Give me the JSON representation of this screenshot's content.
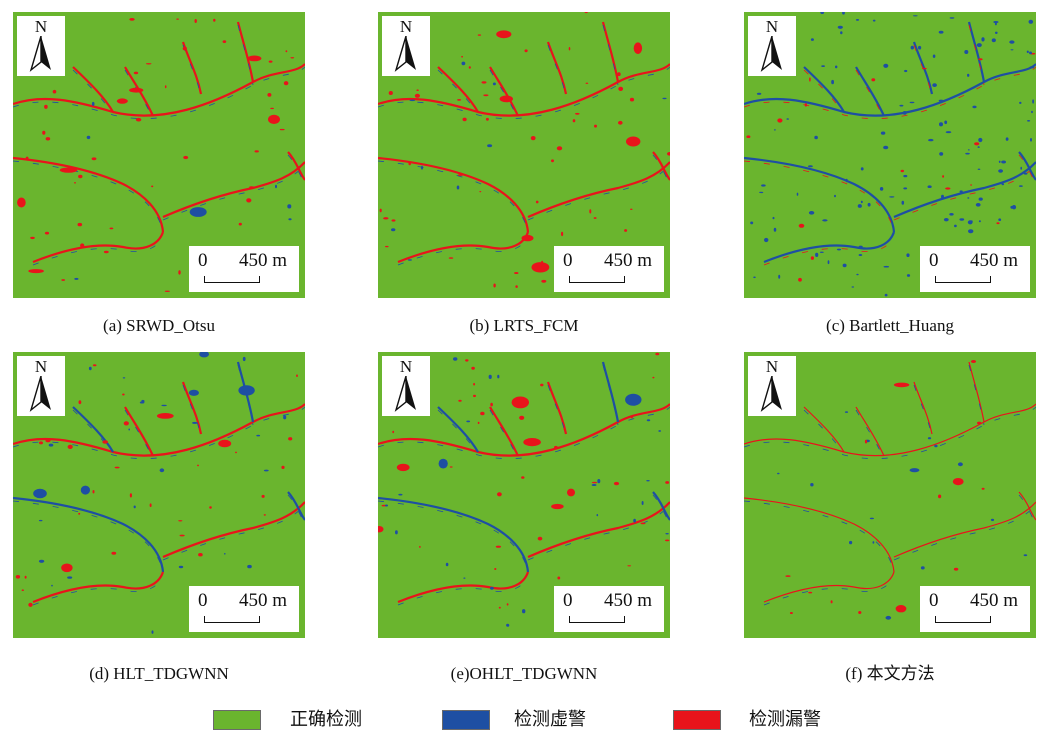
{
  "panels": [
    {
      "caption": "(a) SRWD_Otsu",
      "mode": "red"
    },
    {
      "caption": "(b) LRTS_FCM",
      "mode": "red"
    },
    {
      "caption": "(c) Bartlett_Huang",
      "mode": "blue"
    },
    {
      "caption": "(d) HLT_TDGWNN",
      "mode": "mixed"
    },
    {
      "caption": "(e)OHLT_TDGWNN",
      "mode": "mixed"
    },
    {
      "caption": "(f) 本文方法",
      "mode": "light"
    }
  ],
  "north_label": "N",
  "scale": {
    "zero": "0",
    "distance": "450 m"
  },
  "legend": [
    {
      "label": "正确检测",
      "color": "#6ab52e"
    },
    {
      "label": "检测虚警",
      "color": "#1e4fa3"
    },
    {
      "label": "检测漏警",
      "color": "#e8141b"
    }
  ],
  "colors": {
    "background": "#6ab52e",
    "false_alarm": "#1e4fa3",
    "missed": "#e8141b"
  }
}
